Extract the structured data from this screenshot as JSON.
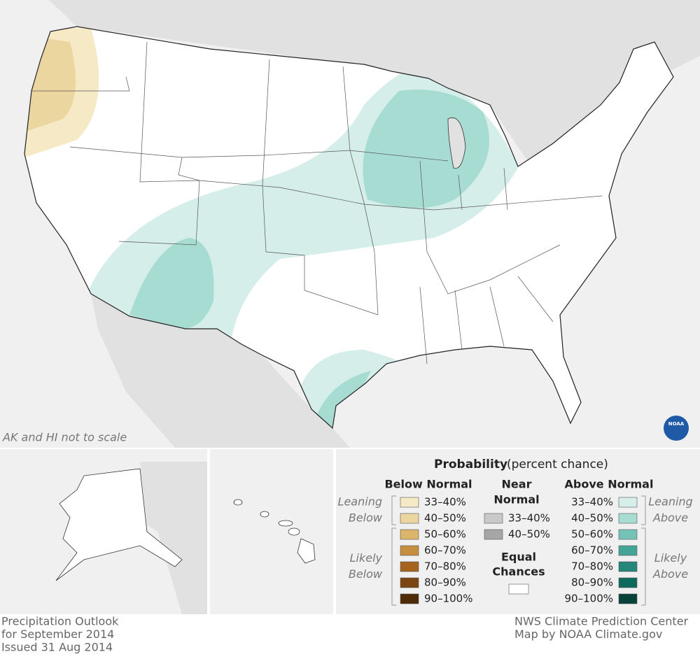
{
  "map": {
    "note": "AK and HI not to scale",
    "logo": "NOAA"
  },
  "legend": {
    "title": "Probability",
    "subtitle": "(percent chance)",
    "below": {
      "heading": "Below Normal",
      "leaning_label": [
        "Leaning",
        "Below"
      ],
      "likely_label": [
        "Likely",
        "Below"
      ],
      "rows": [
        {
          "label": "33–40%",
          "color": "#f5e9c6"
        },
        {
          "label": "40–50%",
          "color": "#ecd6a0"
        },
        {
          "label": "50–60%",
          "color": "#dab56b"
        },
        {
          "label": "60–70%",
          "color": "#c68e3e"
        },
        {
          "label": "70–80%",
          "color": "#a5631d"
        },
        {
          "label": "80–90%",
          "color": "#7b4511"
        },
        {
          "label": "90–100%",
          "color": "#4e2a06"
        }
      ]
    },
    "near": {
      "heading": [
        "Near",
        "Normal"
      ],
      "rows": [
        {
          "label": "33–40%",
          "color": "#c9c9c9"
        },
        {
          "label": "40–50%",
          "color": "#a6a6a6"
        }
      ]
    },
    "equal": {
      "heading": [
        "Equal",
        "Chances"
      ],
      "color": "#ffffff"
    },
    "above": {
      "heading": "Above Normal",
      "leaning_label": [
        "Leaning",
        "Above"
      ],
      "likely_label": [
        "Likely",
        "Above"
      ],
      "rows": [
        {
          "label": "33–40%",
          "color": "#d5eeea"
        },
        {
          "label": "40–50%",
          "color": "#a7dcd3"
        },
        {
          "label": "50–60%",
          "color": "#75c3b7"
        },
        {
          "label": "60–70%",
          "color": "#44a597"
        },
        {
          "label": "70–80%",
          "color": "#24877a"
        },
        {
          "label": "80–90%",
          "color": "#0f6a5e"
        },
        {
          "label": "90–100%",
          "color": "#064237"
        }
      ]
    }
  },
  "footer": {
    "left": [
      "Precipitation Outlook",
      "for September 2014",
      "Issued 31 Aug 2014"
    ],
    "right": [
      "NWS Climate Prediction Center",
      "Map by NOAA Climate.gov"
    ]
  }
}
